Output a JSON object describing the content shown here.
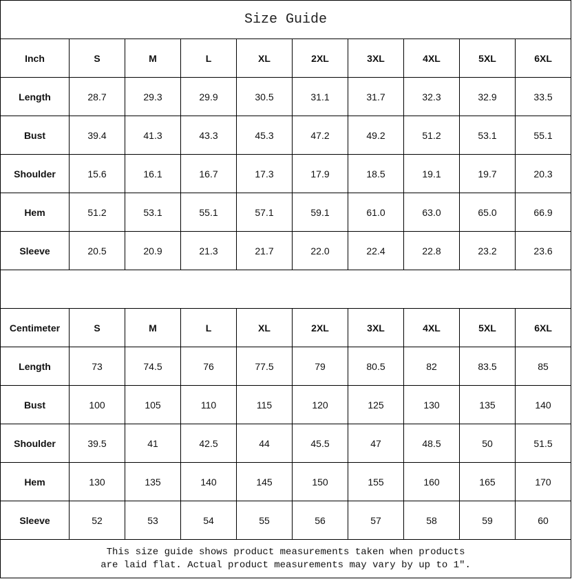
{
  "title": "Size Guide",
  "sizes": [
    "S",
    "M",
    "L",
    "XL",
    "2XL",
    "3XL",
    "4XL",
    "5XL",
    "6XL"
  ],
  "tables": [
    {
      "unit": "Inch",
      "rows": [
        {
          "label": "Length",
          "values": [
            "28.7",
            "29.3",
            "29.9",
            "30.5",
            "31.1",
            "31.7",
            "32.3",
            "32.9",
            "33.5"
          ]
        },
        {
          "label": "Bust",
          "values": [
            "39.4",
            "41.3",
            "43.3",
            "45.3",
            "47.2",
            "49.2",
            "51.2",
            "53.1",
            "55.1"
          ]
        },
        {
          "label": "Shoulder",
          "values": [
            "15.6",
            "16.1",
            "16.7",
            "17.3",
            "17.9",
            "18.5",
            "19.1",
            "19.7",
            "20.3"
          ]
        },
        {
          "label": "Hem",
          "values": [
            "51.2",
            "53.1",
            "55.1",
            "57.1",
            "59.1",
            "61.0",
            "63.0",
            "65.0",
            "66.9"
          ]
        },
        {
          "label": "Sleeve",
          "values": [
            "20.5",
            "20.9",
            "21.3",
            "21.7",
            "22.0",
            "22.4",
            "22.8",
            "23.2",
            "23.6"
          ]
        }
      ]
    },
    {
      "unit": "Centimeter",
      "rows": [
        {
          "label": "Length",
          "values": [
            "73",
            "74.5",
            "76",
            "77.5",
            "79",
            "80.5",
            "82",
            "83.5",
            "85"
          ]
        },
        {
          "label": "Bust",
          "values": [
            "100",
            "105",
            "110",
            "115",
            "120",
            "125",
            "130",
            "135",
            "140"
          ]
        },
        {
          "label": "Shoulder",
          "values": [
            "39.5",
            "41",
            "42.5",
            "44",
            "45.5",
            "47",
            "48.5",
            "50",
            "51.5"
          ]
        },
        {
          "label": "Hem",
          "values": [
            "130",
            "135",
            "140",
            "145",
            "150",
            "155",
            "160",
            "165",
            "170"
          ]
        },
        {
          "label": "Sleeve",
          "values": [
            "52",
            "53",
            "54",
            "55",
            "56",
            "57",
            "58",
            "59",
            "60"
          ]
        }
      ]
    }
  ],
  "note_lines": [
    "This size guide shows product measurements taken when products",
    "are laid flat. Actual product measurements may vary by up to 1″."
  ]
}
